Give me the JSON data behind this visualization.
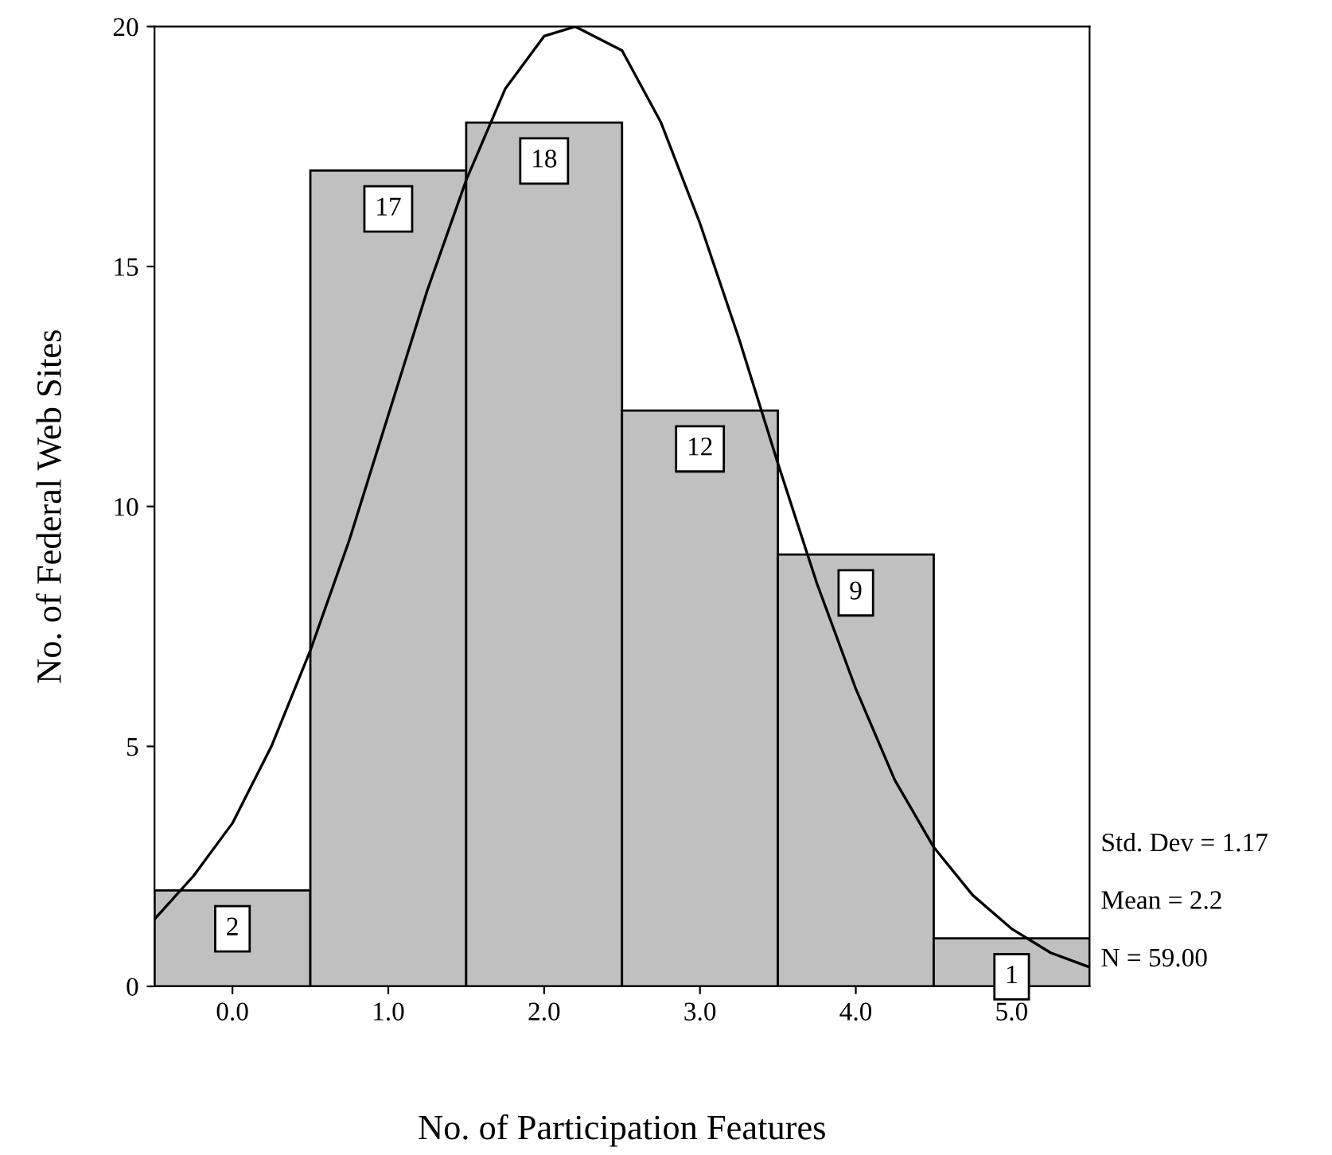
{
  "chart_data": {
    "type": "histogram",
    "xlabel": "No. of Participation Features",
    "ylabel": "No. of Federal Web Sites",
    "bins": [
      -0.5,
      0.5,
      1.5,
      2.5,
      3.5,
      4.5,
      5.5
    ],
    "series": [
      {
        "color": "#c0c0c0",
        "values": [
          2,
          17,
          18,
          12,
          9,
          1
        ],
        "value_labels": [
          "2",
          "17",
          "18",
          "12",
          "9",
          "1"
        ]
      },
      {
        "type": "line",
        "color": "#000000",
        "x": [
          -0.5,
          -0.25,
          0,
          0.25,
          0.5,
          0.75,
          1,
          1.25,
          1.5,
          1.75,
          2,
          2.2,
          2.5,
          2.75,
          3,
          3.25,
          3.5,
          3.75,
          4,
          4.25,
          4.5,
          4.75,
          5,
          5.25,
          5.5
        ],
        "values": [
          1.4,
          2.3,
          3.4,
          5.0,
          7.0,
          9.3,
          11.9,
          14.5,
          16.8,
          18.7,
          19.8,
          20.0,
          19.5,
          18.0,
          15.9,
          13.5,
          10.9,
          8.4,
          6.2,
          4.3,
          2.9,
          1.9,
          1.2,
          0.7,
          0.4
        ]
      }
    ],
    "xlim": [
      -0.5,
      5.5
    ],
    "ylim": [
      0,
      20
    ],
    "xticks": [
      {
        "value": 0,
        "label": "0.0"
      },
      {
        "value": 1,
        "label": "1.0"
      },
      {
        "value": 2,
        "label": "2.0"
      },
      {
        "value": 3,
        "label": "3.0"
      },
      {
        "value": 4,
        "label": "4.0"
      },
      {
        "value": 5,
        "label": "5.0"
      }
    ],
    "yticks": [
      0,
      5,
      10,
      15,
      20
    ],
    "grid": false,
    "annotations": [
      "Std. Dev = 1.17",
      "Mean = 2.2",
      "N = 59.00"
    ]
  }
}
